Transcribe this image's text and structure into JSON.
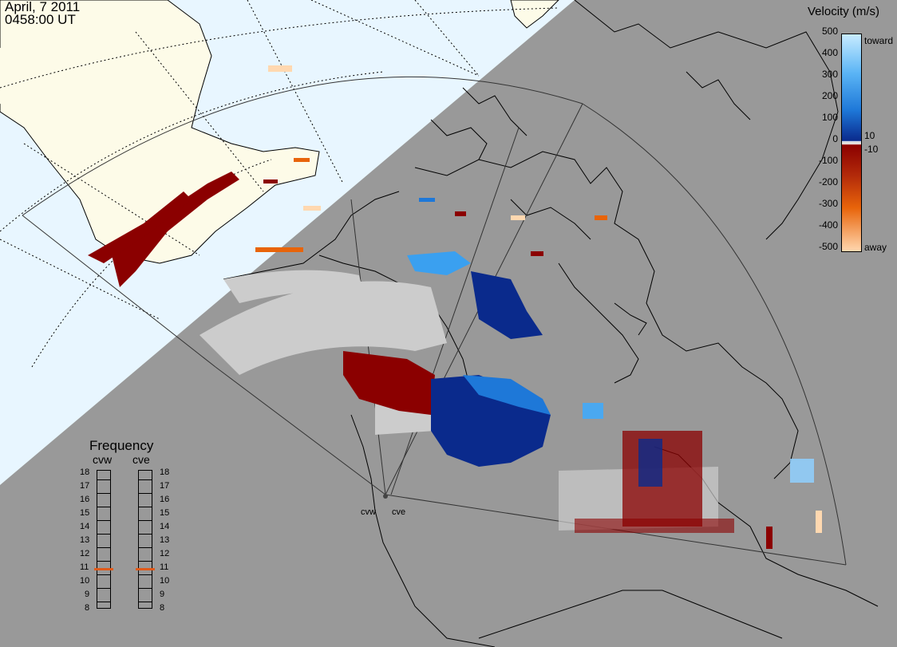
{
  "header": {
    "date": "April, 7 2011",
    "time": "0458:00 UT"
  },
  "colorbar": {
    "title": "Velocity (m/s)",
    "ticks": [
      "500",
      "400",
      "300",
      "200",
      "100",
      "0",
      "-100",
      "-200",
      "-300",
      "-400",
      "-500"
    ],
    "side_labels": {
      "toward": "toward",
      "ten": "10",
      "minus_ten": "-10",
      "away": "away"
    },
    "colors": {
      "toward_light": "#c8ecff",
      "toward_mid": "#1e90ff",
      "toward_dark": "#0a2a8c",
      "away_dark": "#8b0000",
      "away_mid": "#e8640a",
      "away_light": "#ffd8b0",
      "ground_scatter": "#cccccc"
    }
  },
  "frequency": {
    "title": "Frequency",
    "left_label": "cvw",
    "right_label": "cve",
    "scale": [
      "18",
      "17",
      "16",
      "15",
      "14",
      "13",
      "12",
      "11",
      "10",
      "9",
      "8"
    ],
    "cvw_value_mhz": 10.9,
    "cve_value_mhz": 10.9,
    "marker_color": "#e05a1a"
  },
  "radars": {
    "cvw": "cvw",
    "cve": "cve"
  },
  "map_colors": {
    "daylight": "#e8f6ff",
    "land_daylight": "#fdfbe8",
    "night": "#999999"
  }
}
